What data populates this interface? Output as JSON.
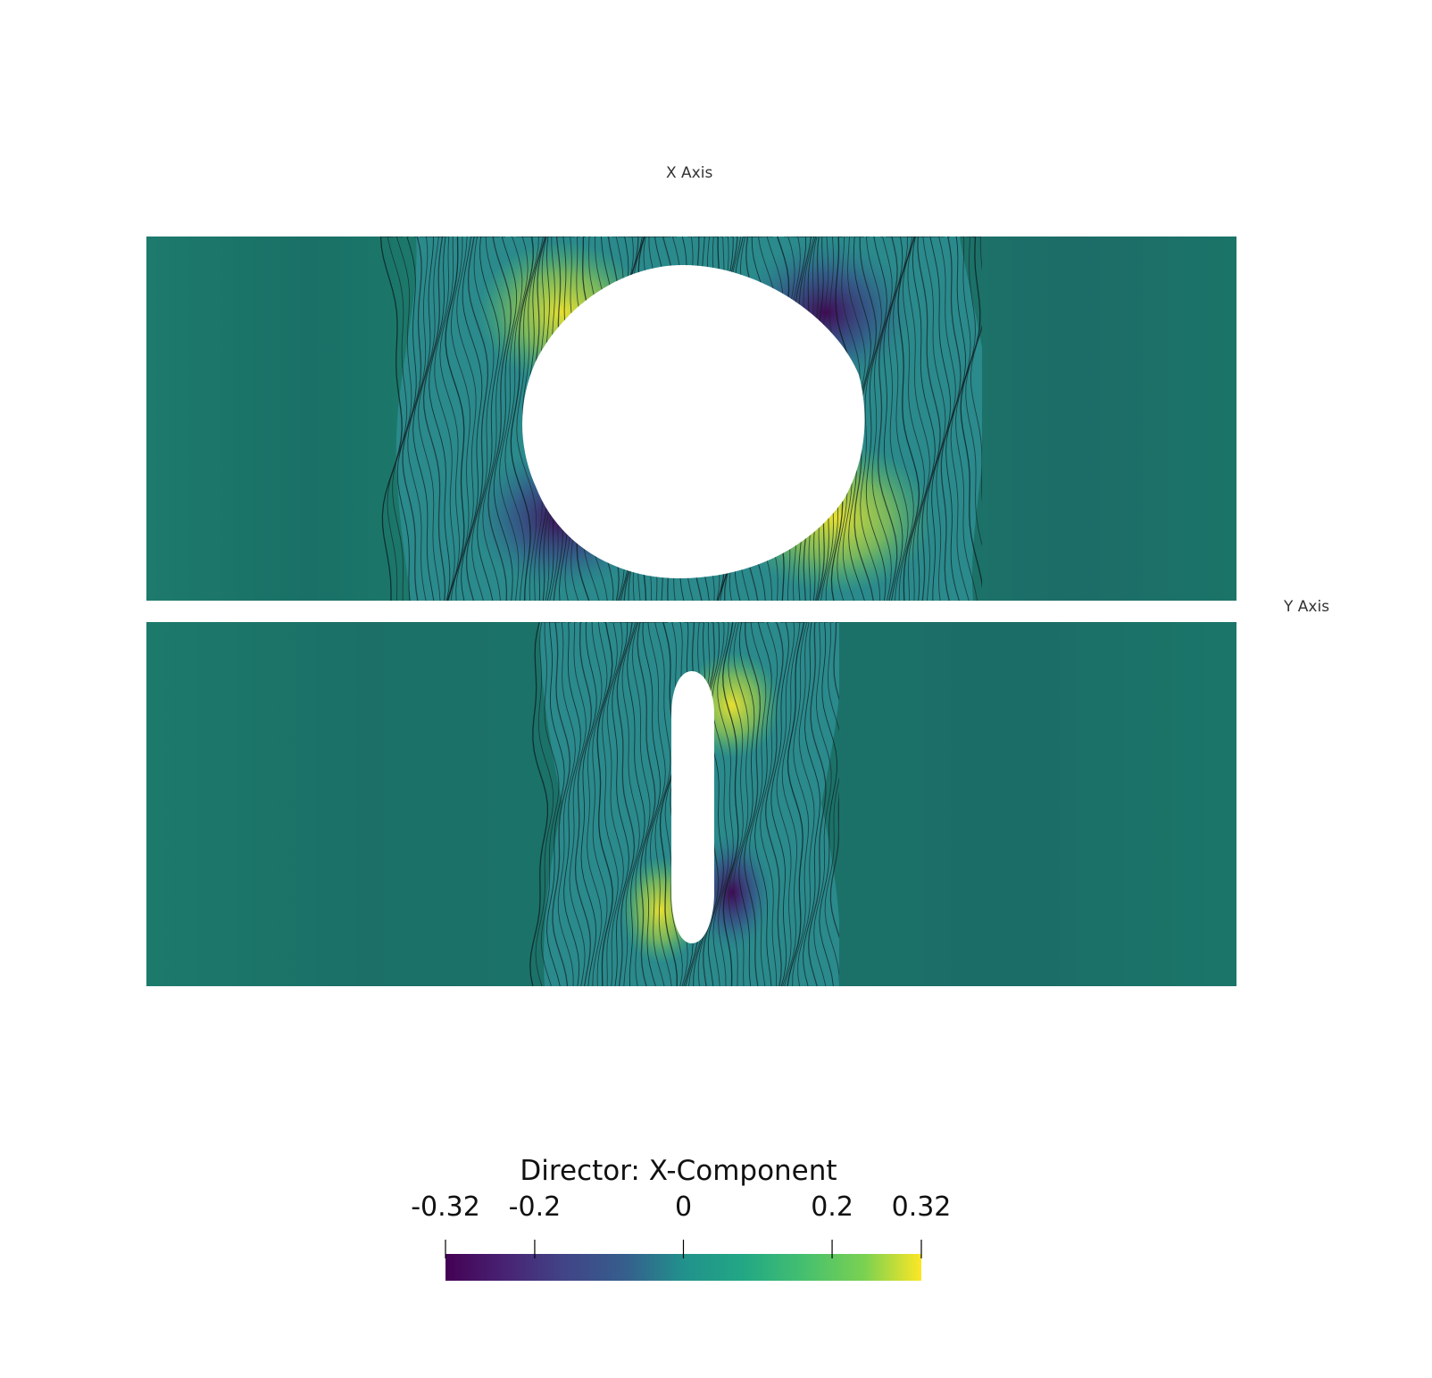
{
  "axes": {
    "x_label": "X Axis",
    "y_label": "Y Axis"
  },
  "panels": [
    {
      "name": "upper panel",
      "hole": "circular hole"
    },
    {
      "name": "lower panel",
      "hole": "slot-shaped hole"
    }
  ],
  "colorbar": {
    "title": "Director: X-Component",
    "min": -0.32,
    "max": 0.32,
    "ticks": [
      {
        "value": -0.32,
        "label": "-0.32"
      },
      {
        "value": -0.2,
        "label": "-0.2"
      },
      {
        "value": 0,
        "label": "0"
      },
      {
        "value": 0.2,
        "label": "0.2"
      },
      {
        "value": 0.32,
        "label": "0.32"
      }
    ],
    "colormap": [
      "#440154",
      "#3b528b",
      "#21918c",
      "#5ec962",
      "#fde725"
    ]
  }
}
